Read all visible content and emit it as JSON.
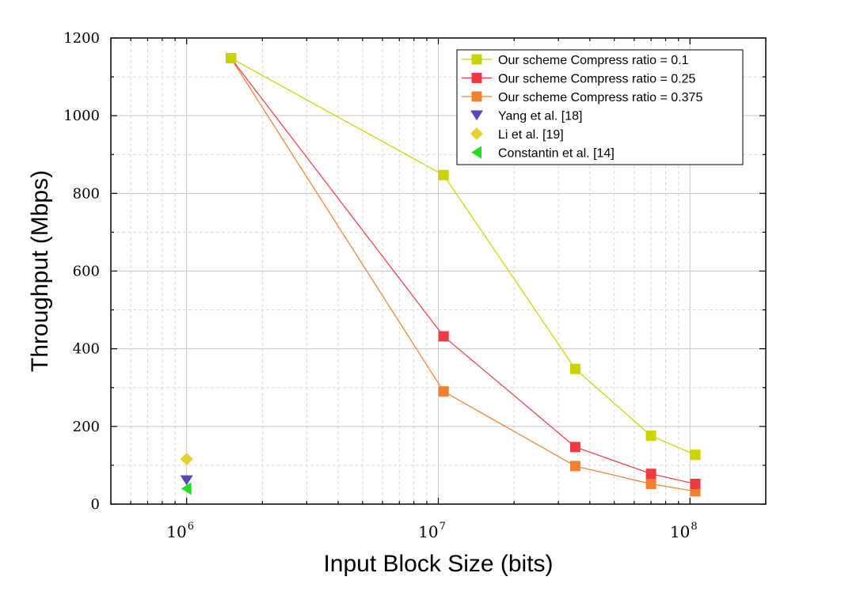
{
  "chart_data": {
    "type": "line",
    "xscale": "log",
    "xlim": [
      500000,
      200000000
    ],
    "ylim": [
      0,
      1200
    ],
    "xlabel": "Input Block Size (bits)",
    "ylabel": "Throughput (Mbps)",
    "xticks": [
      {
        "value": 1000000,
        "base": "10",
        "exp": "6"
      },
      {
        "value": 10000000,
        "base": "10",
        "exp": "7"
      },
      {
        "value": 100000000,
        "base": "10",
        "exp": "8"
      }
    ],
    "yticks": [
      0,
      200,
      400,
      600,
      800,
      1000,
      1200
    ],
    "grid": true,
    "legend_position": "top-right",
    "series": [
      {
        "name": "Our scheme Compress ratio = 0.1",
        "color": "#c8d400",
        "marker": "square",
        "line": true,
        "x": [
          1500000,
          10500000,
          35000000,
          70000000,
          105000000
        ],
        "y": [
          1148,
          847,
          348,
          176,
          127
        ]
      },
      {
        "name": "Our scheme Compress ratio = 0.25",
        "color": "#ee3a44",
        "marker": "square",
        "line": true,
        "x": [
          1500000,
          10500000,
          35000000,
          70000000,
          105000000
        ],
        "y": [
          1148,
          432,
          147,
          78,
          52
        ]
      },
      {
        "name": "Our scheme Compress ratio = 0.375",
        "color": "#f08030",
        "marker": "square",
        "line": true,
        "x": [
          1500000,
          10500000,
          35000000,
          70000000,
          105000000
        ],
        "y": [
          1148,
          290,
          98,
          52,
          33
        ]
      },
      {
        "name": "Yang et al. [18]",
        "color": "#5548b8",
        "marker": "triangle-down",
        "line": false,
        "x": [
          1000000
        ],
        "y": [
          62
        ]
      },
      {
        "name": "Li et al. [19]",
        "color": "#e6d030",
        "marker": "diamond",
        "line": false,
        "x": [
          1000000
        ],
        "y": [
          116
        ]
      },
      {
        "name": "Constantin et al. [14]",
        "color": "#22dd22",
        "marker": "triangle-left",
        "line": false,
        "x": [
          1000000
        ],
        "y": [
          40
        ]
      }
    ]
  }
}
